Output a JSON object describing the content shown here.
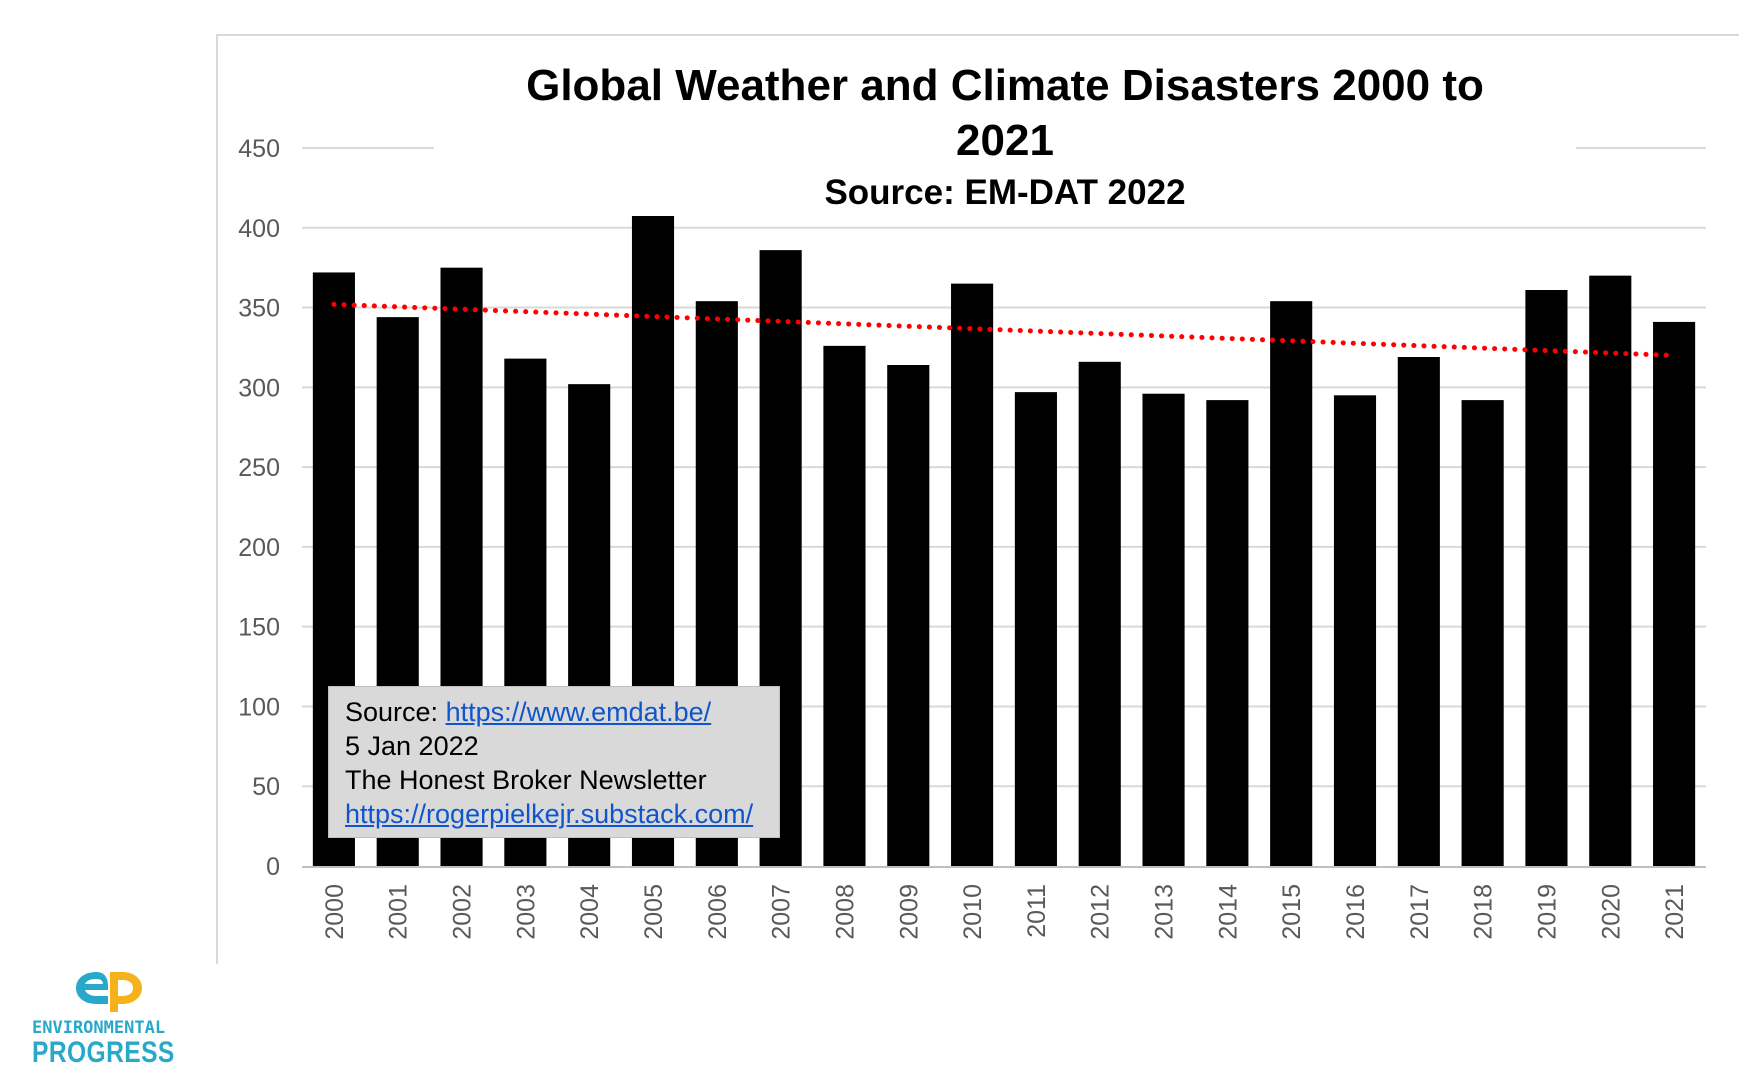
{
  "chart_data": {
    "type": "bar",
    "title": "Global Weather and Climate Disasters 2000 to 2021",
    "title_lines": [
      "Global Weather and Climate Disasters 2000 to",
      "2021"
    ],
    "subtitle": "Source: EM-DAT 2022",
    "xlabel": "",
    "ylabel": "",
    "ylim": [
      0,
      450
    ],
    "yticks": [
      0,
      50,
      100,
      150,
      200,
      250,
      300,
      350,
      400,
      450
    ],
    "grid": true,
    "categories": [
      "2000",
      "2001",
      "2002",
      "2003",
      "2004",
      "2005",
      "2006",
      "2007",
      "2008",
      "2009",
      "2010",
      "2011",
      "2012",
      "2013",
      "2014",
      "2015",
      "2016",
      "2017",
      "2018",
      "2019",
      "2020",
      "2021"
    ],
    "values": [
      372,
      344,
      375,
      318,
      302,
      408,
      354,
      386,
      326,
      314,
      365,
      297,
      316,
      296,
      292,
      354,
      295,
      319,
      292,
      361,
      370,
      341
    ],
    "trendline": {
      "style": "dotted",
      "color": "#ff0000",
      "start": 352,
      "end": 320
    },
    "bar_color": "#000000",
    "annotation": {
      "source_label": "Source: ",
      "source_link": "https://www.emdat.be/",
      "date": "5 Jan 2022",
      "newsletter": "The Honest Broker Newsletter",
      "newsletter_link": "https://rogerpielkejr.substack.com/"
    }
  },
  "logo": {
    "mark": "ep",
    "line1": "ENVIRONMENTAL",
    "line2": "PROGRESS",
    "colors": {
      "e": "#29a9c9",
      "p": "#f5b21a",
      "text": "#29a9c9"
    }
  }
}
